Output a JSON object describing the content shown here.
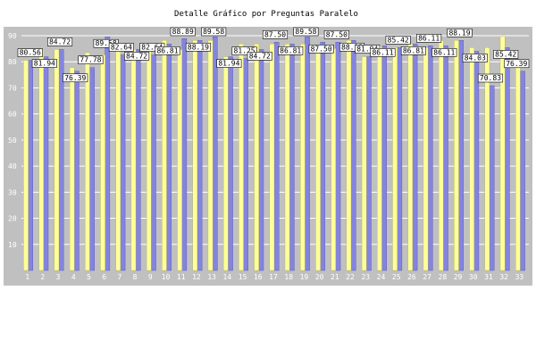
{
  "chart_data": {
    "type": "bar",
    "title": "Detalle Gráfico por Preguntas Paralelo",
    "categories": [
      "1",
      "2",
      "3",
      "4",
      "5",
      "6",
      "7",
      "8",
      "9",
      "10",
      "11",
      "12",
      "13",
      "14",
      "15",
      "16",
      "17",
      "18",
      "19",
      "20",
      "21",
      "22",
      "23",
      "24",
      "25",
      "26",
      "27",
      "28",
      "29",
      "30",
      "31",
      "32",
      "33"
    ],
    "yticks": [
      10,
      20,
      30,
      40,
      50,
      60,
      70,
      80,
      90
    ],
    "ylim": [
      0,
      90
    ],
    "grid": true,
    "series": [
      {
        "values": [
          80.56,
          81.94,
          84.72,
          76.39,
          77.78,
          89.58,
          82.64,
          84.72,
          82.64,
          86.81,
          88.89,
          88.19,
          89.58,
          81.94,
          81.25,
          84.72,
          87.5,
          86.81,
          89.58,
          87.5,
          87.5,
          88.19,
          81.94,
          86.11,
          85.42,
          86.81,
          86.11,
          86.11,
          88.19,
          84.03,
          70.83,
          85.42,
          76.39
        ],
        "color": "#8484e0"
      },
      {
        "values": [
          80.56,
          84.72,
          84.72,
          77.78,
          83.49,
          82.64,
          86.81,
          84.72,
          86.81,
          88.19,
          84.72,
          88.19,
          88.19,
          81.94,
          86.81,
          86.81,
          86.81,
          86.81,
          86.81,
          85.07,
          85.07,
          88.19,
          81.94,
          86.11,
          85.42,
          86.81,
          85.42,
          88.19,
          88.19,
          85.42,
          85.42,
          89.79,
          80.77
        ],
        "color": "#ffff99"
      }
    ],
    "plot_background": "#c0c0c0",
    "grid_color": "#ffffff"
  }
}
